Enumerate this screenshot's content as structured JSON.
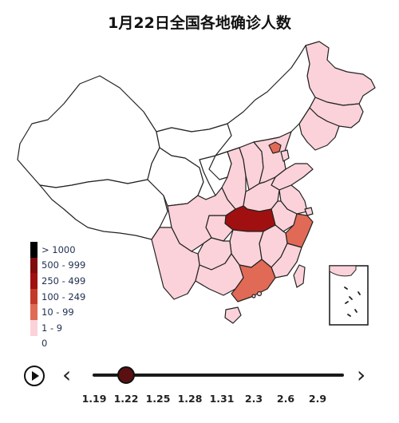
{
  "title": "1月22日全国各地确诊人数",
  "colors": {
    "border": "#222222",
    "none": "#ffffff",
    "c1_9": "#fbd2d9",
    "c10_99": "#e06a55",
    "c100_249": "#c3392a",
    "c250_499": "#a11010",
    "c500_999": "#800c0c",
    "c1000": "#000000"
  },
  "legend": [
    {
      "label": "> 1000",
      "color": "#000000"
    },
    {
      "label": "500 - 999",
      "color": "#800c0c"
    },
    {
      "label": "250 - 499",
      "color": "#a11010"
    },
    {
      "label": "100 - 249",
      "color": "#c3392a"
    },
    {
      "label": "10 - 99",
      "color": "#e06a55"
    },
    {
      "label": "1 - 9",
      "color": "#fbd2d9"
    },
    {
      "label": "0",
      "color": "#ffffff"
    }
  ],
  "timeline": {
    "ticks": [
      "1.19",
      "1.22",
      "1.25",
      "1.28",
      "1.31",
      "2.3",
      "2.6",
      "2.9"
    ],
    "selected": "1.22",
    "play_icon": "play-icon",
    "prev_icon": "chevron-left-icon",
    "next_icon": "chevron-right-icon"
  },
  "regions": [
    {
      "name": "heilongjiang",
      "level": "c1_9"
    },
    {
      "name": "jilin",
      "level": "c1_9"
    },
    {
      "name": "liaoning",
      "level": "c1_9"
    },
    {
      "name": "inner-mongolia",
      "level": "none"
    },
    {
      "name": "xinjiang",
      "level": "none"
    },
    {
      "name": "tibet",
      "level": "none"
    },
    {
      "name": "qinghai",
      "level": "none"
    },
    {
      "name": "gansu",
      "level": "none"
    },
    {
      "name": "ningxia",
      "level": "none"
    },
    {
      "name": "shaanxi",
      "level": "c1_9"
    },
    {
      "name": "shanxi",
      "level": "c1_9"
    },
    {
      "name": "hebei",
      "level": "c1_9"
    },
    {
      "name": "beijing",
      "level": "c10_99"
    },
    {
      "name": "tianjin",
      "level": "c1_9"
    },
    {
      "name": "shandong",
      "level": "c1_9"
    },
    {
      "name": "henan",
      "level": "c1_9"
    },
    {
      "name": "jiangsu",
      "level": "c1_9"
    },
    {
      "name": "anhui",
      "level": "c1_9"
    },
    {
      "name": "shanghai",
      "level": "c1_9"
    },
    {
      "name": "hubei",
      "level": "c250_499"
    },
    {
      "name": "chongqing",
      "level": "c1_9"
    },
    {
      "name": "sichuan",
      "level": "c1_9"
    },
    {
      "name": "zhejiang",
      "level": "c10_99"
    },
    {
      "name": "jiangxi",
      "level": "c1_9"
    },
    {
      "name": "hunan",
      "level": "c1_9"
    },
    {
      "name": "guizhou",
      "level": "c1_9"
    },
    {
      "name": "yunnan",
      "level": "c1_9"
    },
    {
      "name": "guangxi",
      "level": "c1_9"
    },
    {
      "name": "guangdong",
      "level": "c10_99"
    },
    {
      "name": "fujian",
      "level": "c1_9"
    },
    {
      "name": "hainan",
      "level": "c1_9"
    },
    {
      "name": "taiwan",
      "level": "c1_9"
    },
    {
      "name": "hongkong",
      "level": "c1_9"
    },
    {
      "name": "macau",
      "level": "c1_9"
    }
  ]
}
